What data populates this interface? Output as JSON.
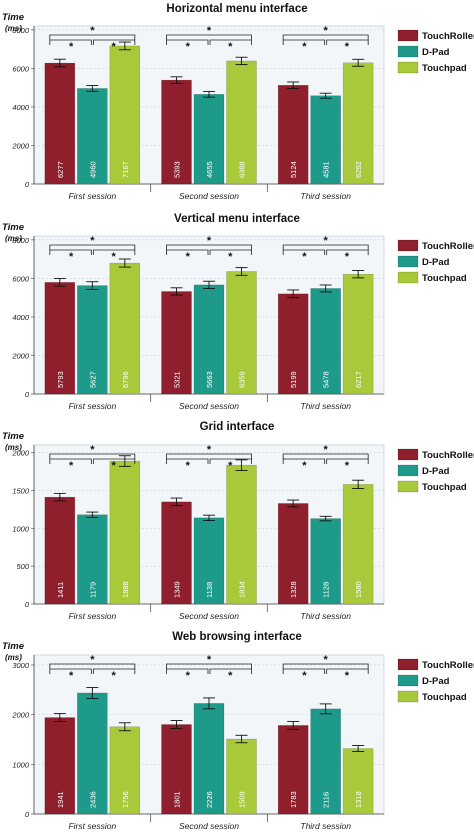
{
  "colors": {
    "touchroller": "#8f1f2c",
    "dpad": "#1e9a8a",
    "touchpad": "#a7c93a",
    "plot_bg": "#f2f6f9",
    "grid": "#c6d2dc"
  },
  "chart_data": [
    {
      "type": "bar",
      "title": "Horizontal menu interface",
      "ylabel": "Time",
      "yunit": "(ms)",
      "ylim": [
        0,
        8200
      ],
      "yticks": [
        0,
        2000,
        4000,
        6000,
        8000
      ],
      "categories": [
        "First session",
        "Second session",
        "Third session"
      ],
      "series": [
        {
          "name": "TouchRoller",
          "values": [
            6277,
            5393,
            5124
          ],
          "errors": [
            200,
            170,
            170
          ]
        },
        {
          "name": "D-Pad",
          "values": [
            4960,
            4655,
            4581
          ],
          "errors": [
            150,
            150,
            130
          ]
        },
        {
          "name": "Touchpad",
          "values": [
            7167,
            6388,
            6292
          ],
          "errors": [
            200,
            190,
            180
          ]
        }
      ],
      "value_labels": [
        [
          "6277",
          "4960",
          "7167"
        ],
        [
          "5393",
          "4655",
          "6388"
        ],
        [
          "5124",
          "4581",
          "6292"
        ]
      ],
      "significance_marker": "*",
      "legend_position": "right"
    },
    {
      "type": "bar",
      "title": "Vertical menu interface",
      "ylabel": "Time",
      "yunit": "(ms)",
      "ylim": [
        0,
        8200
      ],
      "yticks": [
        0,
        2000,
        4000,
        6000,
        8000
      ],
      "categories": [
        "First session",
        "Second session",
        "Third session"
      ],
      "series": [
        {
          "name": "TouchRoller",
          "values": [
            5793,
            5321,
            5199
          ],
          "errors": [
            200,
            190,
            200
          ]
        },
        {
          "name": "D-Pad",
          "values": [
            5627,
            5663,
            5478
          ],
          "errors": [
            200,
            190,
            180
          ]
        },
        {
          "name": "Touchpad",
          "values": [
            6796,
            6359,
            6217
          ],
          "errors": [
            210,
            200,
            190
          ]
        }
      ],
      "value_labels": [
        [
          "5793",
          "5627",
          "6796"
        ],
        [
          "5321",
          "5663",
          "6359"
        ],
        [
          "5199",
          "5478",
          "6217"
        ]
      ],
      "significance_marker": "*",
      "legend_position": "right"
    },
    {
      "type": "bar",
      "title": "Grid interface",
      "ylabel": "Time",
      "yunit": "(ms)",
      "ylim": [
        0,
        2100
      ],
      "yticks": [
        0,
        500,
        1000,
        1500,
        2000
      ],
      "categories": [
        "First session",
        "Second session",
        "Third session"
      ],
      "series": [
        {
          "name": "TouchRoller",
          "values": [
            1411,
            1349,
            1328
          ],
          "errors": [
            50,
            50,
            45
          ]
        },
        {
          "name": "D-Pad",
          "values": [
            1179,
            1138,
            1128
          ],
          "errors": [
            35,
            35,
            30
          ]
        },
        {
          "name": "Touchpad",
          "values": [
            1888,
            1834,
            1580
          ],
          "errors": [
            70,
            70,
            55
          ]
        }
      ],
      "value_labels": [
        [
          "1411",
          "1179",
          "1888"
        ],
        [
          "1349",
          "1138",
          "1834"
        ],
        [
          "1328",
          "1128",
          "1580"
        ]
      ],
      "significance_marker": "*",
      "legend_position": "right"
    },
    {
      "type": "bar",
      "title": "Web browsing interface",
      "ylabel": "Time",
      "yunit": "(ms)",
      "ylim": [
        0,
        3200
      ],
      "yticks": [
        0,
        1000,
        2000,
        3000
      ],
      "categories": [
        "First session",
        "Second session",
        "Third session"
      ],
      "series": [
        {
          "name": "TouchRoller",
          "values": [
            1941,
            1801,
            1783
          ],
          "errors": [
            80,
            80,
            80
          ]
        },
        {
          "name": "D-Pad",
          "values": [
            2436,
            2226,
            2116
          ],
          "errors": [
            110,
            110,
            100
          ]
        },
        {
          "name": "Touchpad",
          "values": [
            1756,
            1509,
            1318
          ],
          "errors": [
            80,
            75,
            60
          ]
        }
      ],
      "value_labels": [
        [
          "1941",
          "2436",
          "1756"
        ],
        [
          "1801",
          "2226",
          "1509"
        ],
        [
          "1783",
          "2116",
          "1318"
        ]
      ],
      "significance_marker": "*",
      "legend_position": "right"
    }
  ]
}
